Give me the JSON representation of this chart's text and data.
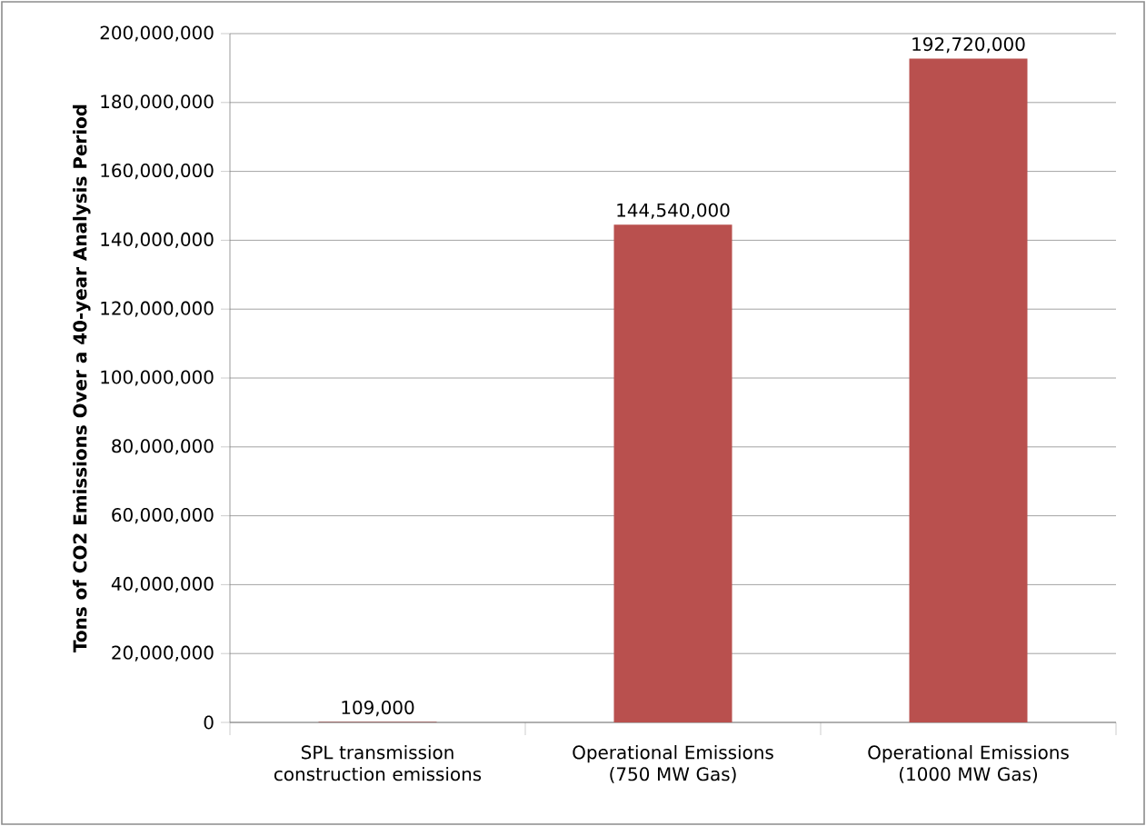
{
  "chart_data": {
    "type": "bar",
    "ylabel": "Tons of CO2 Emissions Over a 40-year Analysis Period",
    "categories": [
      "SPL transmission construction emissions",
      "Operational Emissions (750 MW Gas)",
      "Operational Emissions (1000 MW Gas)"
    ],
    "values": [
      109000,
      144540000,
      192720000
    ],
    "value_labels": [
      "109,000",
      "144,540,000",
      "192,720,000"
    ],
    "colors": [
      "#953735",
      "#b9504e",
      "#b9504e"
    ],
    "ylim": [
      0,
      200000000
    ],
    "yticks": [
      {
        "value": 0,
        "label": "0"
      },
      {
        "value": 20000000,
        "label": "20,000,000"
      },
      {
        "value": 40000000,
        "label": "40,000,000"
      },
      {
        "value": 60000000,
        "label": "60,000,000"
      },
      {
        "value": 80000000,
        "label": "80,000,000"
      },
      {
        "value": 100000000,
        "label": "100,000,000"
      },
      {
        "value": 120000000,
        "label": "120,000,000"
      },
      {
        "value": 140000000,
        "label": "140,000,000"
      },
      {
        "value": 160000000,
        "label": "160,000,000"
      },
      {
        "value": 180000000,
        "label": "180,000,000"
      },
      {
        "value": 200000000,
        "label": "200,000,000"
      }
    ],
    "grid": "y"
  }
}
